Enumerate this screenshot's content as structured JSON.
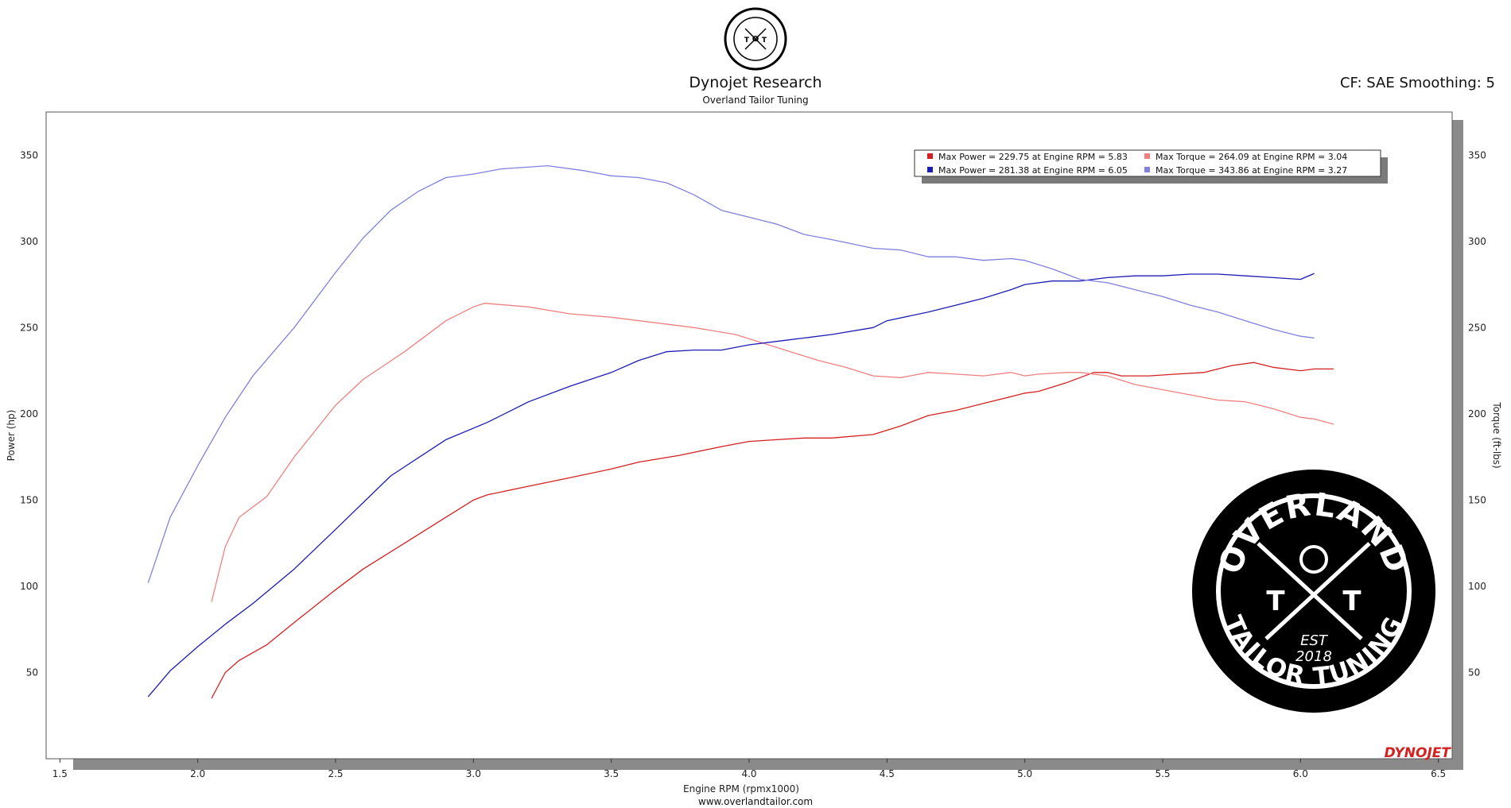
{
  "header": {
    "title": "Dynojet Research",
    "subtitle": "Overland Tailor Tuning",
    "cf_label": "CF: SAE Smoothing: 5",
    "logo_text_top": "OVERLAND",
    "logo_text_bottom": "TAILOR TUNING",
    "logo_est": "EST",
    "logo_year": "2018"
  },
  "footer": {
    "url": "www.overlandtailor.com",
    "brand": "DYNOJET"
  },
  "chart_data": {
    "type": "line",
    "xlabel": "Engine RPM (rpmx1000)",
    "ylabel_left": "Power (hp)",
    "ylabel_right": "Torque (ft-lbs)",
    "xlim": [
      1.45,
      6.55
    ],
    "ylim": [
      0,
      375
    ],
    "x_ticks": [
      "1.5",
      "2.0",
      "2.5",
      "3.0",
      "3.5",
      "4.0",
      "4.5",
      "5.0",
      "5.5",
      "6.0",
      "6.5"
    ],
    "y_ticks": [
      "50",
      "100",
      "150",
      "200",
      "250",
      "300",
      "350"
    ],
    "grid": true,
    "legend_placement": "top-right",
    "legend": [
      {
        "text": "Max Power = 229.75 at Engine RPM = 5.83",
        "color": "#d42020"
      },
      {
        "text": "Max Torque = 264.09 at Engine RPM = 3.04",
        "color": "#f08080"
      },
      {
        "text": "Max Power = 281.38 at Engine RPM = 6.05",
        "color": "#1c1cb4"
      },
      {
        "text": "Max Torque = 343.86 at Engine RPM = 3.27",
        "color": "#8080e0"
      }
    ],
    "series": [
      {
        "color": "#d42020",
        "x": [
          2.05,
          2.1,
          2.15,
          2.25,
          2.35,
          2.5,
          2.6,
          2.75,
          2.9,
          3.0,
          3.05,
          3.2,
          3.35,
          3.5,
          3.6,
          3.75,
          3.9,
          4.0,
          4.1,
          4.2,
          4.3,
          4.45,
          4.55,
          4.65,
          4.75,
          4.85,
          4.95,
          5.0,
          5.05,
          5.15,
          5.2,
          5.25,
          5.3,
          5.35,
          5.45,
          5.55,
          5.65,
          5.75,
          5.83,
          5.9,
          6.0,
          6.05,
          6.12
        ],
        "y": [
          35,
          50,
          57,
          66,
          79,
          98,
          110,
          125,
          140,
          150,
          153,
          158,
          163,
          168,
          172,
          176,
          181,
          184,
          185,
          186,
          186,
          188,
          193,
          199,
          202,
          206,
          210,
          212,
          213,
          218,
          221,
          224,
          224,
          222,
          222,
          223,
          224,
          228,
          229.75,
          227,
          225,
          226,
          226
        ]
      },
      {
        "color": "#f08080",
        "x": [
          2.05,
          2.1,
          2.15,
          2.25,
          2.35,
          2.5,
          2.6,
          2.75,
          2.9,
          3.0,
          3.04,
          3.2,
          3.35,
          3.5,
          3.65,
          3.8,
          3.95,
          4.05,
          4.15,
          4.25,
          4.35,
          4.45,
          4.55,
          4.65,
          4.75,
          4.85,
          4.95,
          5.0,
          5.05,
          5.15,
          5.2,
          5.3,
          5.4,
          5.5,
          5.6,
          5.7,
          5.8,
          5.9,
          6.0,
          6.05,
          6.12
        ],
        "y": [
          91,
          123,
          140,
          152,
          175,
          205,
          220,
          236,
          254,
          262,
          264.09,
          262,
          258,
          256,
          253,
          250,
          246,
          241,
          236,
          231,
          227,
          222,
          221,
          224,
          223,
          222,
          224,
          222,
          223,
          224,
          224,
          222,
          217,
          214,
          211,
          208,
          207,
          203,
          198,
          197,
          194
        ]
      },
      {
        "color": "#1c1cb4",
        "x": [
          1.82,
          1.9,
          2.0,
          2.1,
          2.2,
          2.35,
          2.5,
          2.7,
          2.9,
          3.05,
          3.2,
          3.35,
          3.5,
          3.6,
          3.7,
          3.8,
          3.9,
          4.0,
          4.1,
          4.2,
          4.3,
          4.45,
          4.5,
          4.65,
          4.75,
          4.85,
          4.95,
          5.0,
          5.1,
          5.2,
          5.3,
          5.4,
          5.5,
          5.6,
          5.7,
          5.8,
          5.9,
          6.0,
          6.05
        ],
        "y": [
          36,
          51,
          65,
          78,
          90,
          110,
          133,
          164,
          185,
          195,
          207,
          216,
          224,
          231,
          236,
          237,
          237,
          240,
          242,
          244,
          246,
          250,
          254,
          259,
          263,
          267,
          272,
          275,
          277,
          277,
          279,
          280,
          280,
          281,
          281,
          280,
          279,
          278,
          281.38
        ]
      },
      {
        "color": "#8080e0",
        "x": [
          1.82,
          1.9,
          2.0,
          2.1,
          2.2,
          2.35,
          2.5,
          2.6,
          2.7,
          2.8,
          2.9,
          3.0,
          3.1,
          3.27,
          3.4,
          3.5,
          3.6,
          3.7,
          3.8,
          3.9,
          4.0,
          4.1,
          4.2,
          4.3,
          4.45,
          4.55,
          4.65,
          4.75,
          4.85,
          4.95,
          5.0,
          5.1,
          5.2,
          5.3,
          5.4,
          5.5,
          5.6,
          5.7,
          5.8,
          5.9,
          6.0,
          6.05
        ],
        "y": [
          102,
          140,
          170,
          198,
          222,
          250,
          282,
          302,
          318,
          329,
          337,
          339,
          342,
          343.86,
          341,
          338,
          337,
          334,
          327,
          318,
          314,
          310,
          304,
          301,
          296,
          295,
          291,
          291,
          289,
          290,
          289,
          284,
          278,
          276,
          272,
          268,
          263,
          259,
          254,
          249,
          245,
          244
        ]
      }
    ]
  }
}
